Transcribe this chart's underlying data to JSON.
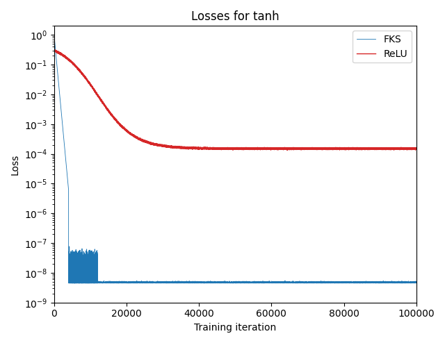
{
  "title": "Losses for tanh",
  "xlabel": "Training iteration",
  "ylabel": "Loss",
  "xlim": [
    0,
    100000
  ],
  "ylim_bottom": 1e-09,
  "ylim_top": 2.0,
  "fks_color": "#1f77b4",
  "relu_color": "#d62728",
  "legend_labels": [
    "FKS",
    "ReLU"
  ],
  "fks_start": 1.0,
  "fks_floor": 4.5e-09,
  "fks_osc_floor": 2e-08,
  "fks_osc_end": 12000,
  "relu_start": 0.6,
  "relu_end": 0.00015,
  "relu_inflection": 15000,
  "relu_slope": 0.00035,
  "n_points": 100000
}
